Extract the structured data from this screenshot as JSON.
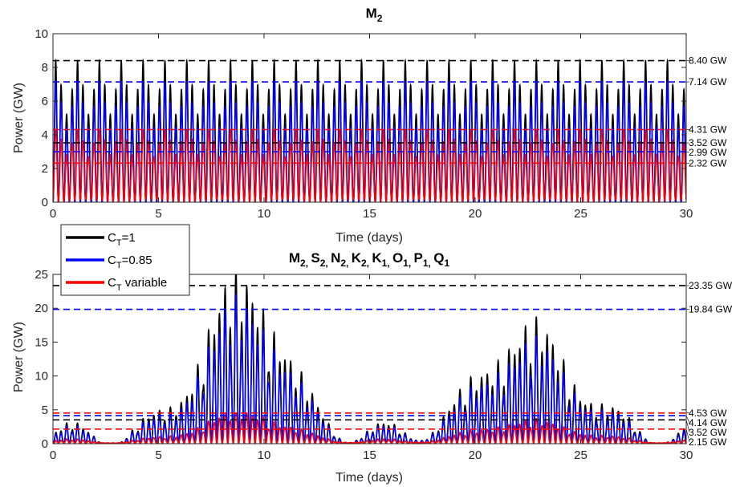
{
  "chart_data": [
    {
      "type": "line",
      "title": "M2",
      "title_main": "M",
      "title_sub": "2",
      "xlabel": "Time (days)",
      "ylabel": "Power (GW)",
      "xlim": [
        0,
        30
      ],
      "ylim": [
        0,
        10
      ],
      "xticks": [
        "0",
        "5",
        "10",
        "15",
        "20",
        "25",
        "30"
      ],
      "yticks": [
        "0",
        "2",
        "4",
        "6",
        "8",
        "10"
      ],
      "grid": false,
      "signal": {
        "kind": "M2 tidal power, semidiurnal",
        "period_days": 0.5175,
        "x_range": [
          0,
          30
        ],
        "series_peaks": {
          "black": 8.4,
          "blue": 7.14,
          "red": 4.31
        }
      },
      "series": [
        {
          "name": "C_T=1",
          "color": "#000000"
        },
        {
          "name": "C_T=0.85",
          "color": "#0000FF"
        },
        {
          "name": "C_T variable",
          "color": "#FF0000"
        }
      ],
      "reference_lines": [
        {
          "value": 8.4,
          "label": "8.40 GW",
          "color": "#000000",
          "style": "dashed"
        },
        {
          "value": 7.14,
          "label": "7.14 GW",
          "color": "#0000FF",
          "style": "dashed"
        },
        {
          "value": 4.31,
          "label": "4.31 GW",
          "color": "#FF0000",
          "style": "dashed"
        },
        {
          "value": 3.52,
          "label": "3.52 GW",
          "color": "#000000",
          "style": "dashed"
        },
        {
          "value": 2.99,
          "label": "2.99 GW",
          "color": "#0000FF",
          "style": "dashed"
        },
        {
          "value": 2.32,
          "label": "2.32 GW",
          "color": "#FF0000",
          "style": "dashed"
        }
      ]
    },
    {
      "type": "line",
      "title": "M2, S2, N2, K2, K1, O1, P1, Q1",
      "title_parts": [
        {
          "main": "M",
          "sub": "2"
        },
        {
          "main": "S",
          "sub": "2"
        },
        {
          "main": "N",
          "sub": "2"
        },
        {
          "main": "K",
          "sub": "2"
        },
        {
          "main": "K",
          "sub": "1"
        },
        {
          "main": "O",
          "sub": "1"
        },
        {
          "main": "P",
          "sub": "1"
        },
        {
          "main": "Q",
          "sub": "1"
        }
      ],
      "xlabel": "Time (days)",
      "ylabel": "Power (GW)",
      "xlim": [
        0,
        30
      ],
      "ylim": [
        0,
        25
      ],
      "xticks": [
        "0",
        "5",
        "10",
        "15",
        "20",
        "25",
        "30"
      ],
      "yticks": [
        "0",
        "5",
        "10",
        "15",
        "20",
        "25"
      ],
      "grid": false,
      "signal": {
        "kind": "multi-constituent tidal power, spring-neap modulated",
        "period_days": 0.5175,
        "x_range": [
          0,
          30
        ],
        "spring_peaks_days": [
          9.0,
          22.5
        ],
        "series_peaks": {
          "black": 23.35,
          "blue": 19.84,
          "red": 4.53
        }
      },
      "series": [
        {
          "name": "C_T=1",
          "color": "#000000"
        },
        {
          "name": "C_T=0.85",
          "color": "#0000FF"
        },
        {
          "name": "C_T variable",
          "color": "#FF0000"
        }
      ],
      "reference_lines": [
        {
          "value": 23.35,
          "label": "23.35 GW",
          "color": "#000000",
          "style": "dashed"
        },
        {
          "value": 19.84,
          "label": "19.84 GW",
          "color": "#0000FF",
          "style": "dashed"
        },
        {
          "value": 4.53,
          "label": "4.53 GW",
          "color": "#FF0000",
          "style": "dashed"
        },
        {
          "value": 4.14,
          "label": "4.14 GW",
          "color": "#0000FF",
          "style": "dashed"
        },
        {
          "value": 3.52,
          "label": "3.52 GW",
          "color": "#000000",
          "style": "dashed"
        },
        {
          "value": 2.15,
          "label": "2.15 GW",
          "color": "#FF0000",
          "style": "dashed"
        }
      ]
    }
  ],
  "legend": {
    "placement": "between-panels-left",
    "entries": [
      {
        "main": "C",
        "sub": "T",
        "suffix": "=1",
        "color": "#000000"
      },
      {
        "main": "C",
        "sub": "T",
        "suffix": "=0.85",
        "color": "#0000FF"
      },
      {
        "main": "C",
        "sub": "T",
        "suffix": " variable",
        "color": "#FF0000"
      }
    ]
  }
}
